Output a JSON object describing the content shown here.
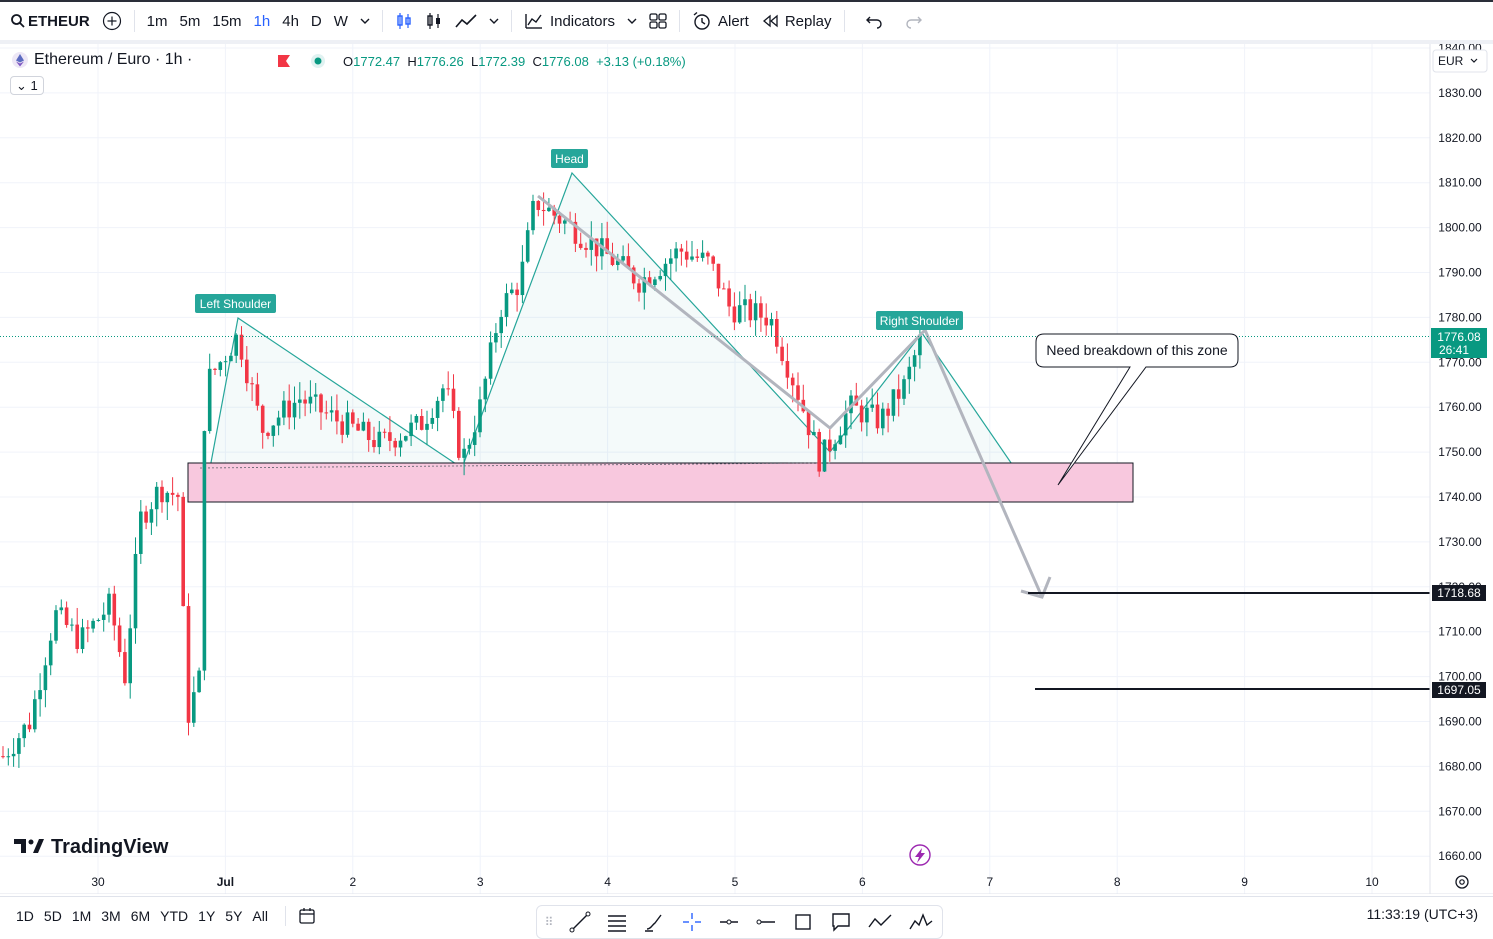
{
  "toolbar": {
    "symbol": "ETHEUR",
    "intervals": [
      "1m",
      "5m",
      "15m",
      "1h",
      "4h",
      "D",
      "W"
    ],
    "active_interval": "1h",
    "indicators_label": "Indicators",
    "alert_label": "Alert",
    "replay_label": "Replay"
  },
  "legend": {
    "title": "Ethereum / Euro · 1h ·",
    "open_label": "O",
    "open": "1772.47",
    "high_label": "H",
    "high": "1776.26",
    "low_label": "L",
    "low": "1772.39",
    "close_label": "C",
    "close": "1776.08",
    "change": "+3.13 (+0.18%)",
    "indicator_count": "1"
  },
  "price_axis": {
    "currency": "EUR",
    "ticks": [
      "1840.00",
      "1830.00",
      "1820.00",
      "1810.00",
      "1800.00",
      "1790.00",
      "1780.00",
      "1770.00",
      "1760.00",
      "1750.00",
      "1740.00",
      "1730.00",
      "1720.00",
      "1710.00",
      "1700.00",
      "1690.00",
      "1680.00",
      "1670.00",
      "1660.00"
    ],
    "current_price": "1776.08",
    "countdown": "26:41",
    "target1": "1718.68",
    "target2": "1697.05"
  },
  "time_axis": {
    "ticks": [
      "30",
      "Jul",
      "2",
      "3",
      "4",
      "5",
      "6",
      "7",
      "8",
      "9",
      "10"
    ]
  },
  "annotations": {
    "left_shoulder": "Left Shoulder",
    "head": "Head",
    "right_shoulder": "Right Shoulder",
    "callout": "Need breakdown of this zone"
  },
  "watermark": "TradingView",
  "bottom": {
    "ranges": [
      "1D",
      "5D",
      "1M",
      "3M",
      "6M",
      "YTD",
      "1Y",
      "5Y",
      "All"
    ],
    "clock": "11:33:19 (UTC+3)"
  },
  "colors": {
    "up": "#089981",
    "down": "#f23645",
    "zone": "#f8c8de",
    "label_bg": "#26a69a"
  }
}
